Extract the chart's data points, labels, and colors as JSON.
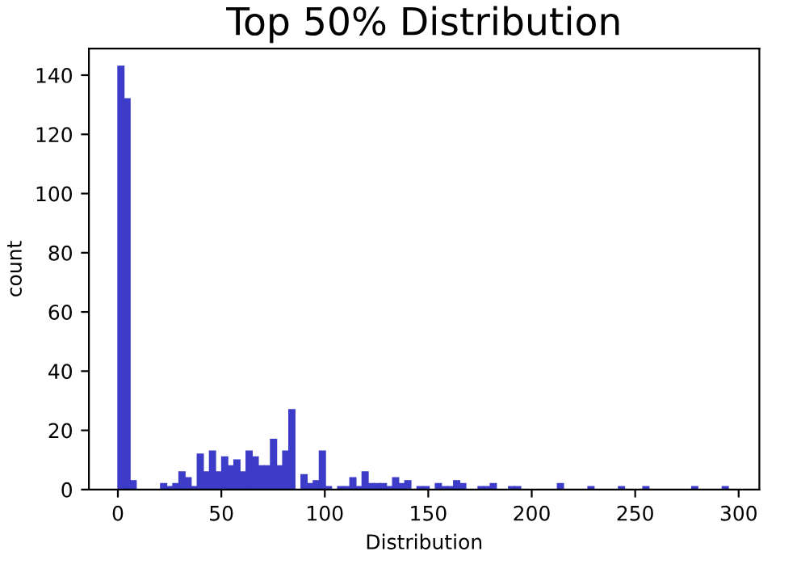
{
  "chart_data": {
    "type": "histogram",
    "title": "Top 50% Distribution",
    "xlabel": "Distribution",
    "ylabel": "count",
    "color": "#3c3cc8",
    "bins": [
      0,
      2.95,
      5.9,
      8.85,
      11.8,
      14.75,
      17.7,
      20.65,
      23.6,
      26.55,
      29.5,
      32.45,
      35.4,
      38.35,
      41.3,
      44.25,
      47.2,
      50.15,
      53.1,
      56.05,
      59,
      61.95,
      64.9,
      67.85,
      70.8,
      73.75,
      76.7,
      79.65,
      82.6,
      85.55,
      88.5,
      91.45,
      94.4,
      97.35,
      100.3,
      103.25,
      106.2,
      109.15,
      112.1,
      115.05,
      118,
      120.95,
      123.9,
      126.85,
      129.8,
      132.75,
      135.7,
      138.65,
      141.6,
      144.55,
      147.5,
      150.45,
      153.4,
      156.35,
      159.3,
      162.25,
      165.2,
      168.15,
      171.1,
      174.05,
      177,
      179.95,
      182.9,
      185.85,
      188.8,
      191.75,
      194.7,
      197.65,
      200.6,
      203.55,
      206.5,
      209.45,
      212.4,
      215.35,
      218.3,
      221.25,
      224.2,
      227.15,
      230.1,
      233.05,
      236,
      238.95,
      241.9,
      244.85,
      247.8,
      250.75,
      253.7,
      256.65,
      259.6,
      262.55,
      265.5,
      268.45,
      271.4,
      274.35,
      277.3,
      280.25,
      283.2,
      286.15,
      289.1,
      292.05,
      295
    ],
    "values": [
      143,
      132,
      3,
      0,
      0,
      0,
      0,
      2,
      1,
      2,
      6,
      4,
      1,
      12,
      6,
      13,
      6,
      11,
      8,
      10,
      6,
      13,
      11,
      8,
      8,
      17,
      8,
      13,
      27,
      0,
      5,
      2,
      3,
      13,
      1,
      0,
      1,
      1,
      4,
      1,
      6,
      2,
      2,
      2,
      1,
      4,
      2,
      3,
      0,
      1,
      1,
      0,
      2,
      1,
      1,
      3,
      2,
      0,
      0,
      1,
      1,
      2,
      0,
      0,
      1,
      1,
      0,
      0,
      0,
      0,
      0,
      0,
      2,
      0,
      0,
      0,
      0,
      1,
      0,
      0,
      0,
      0,
      1,
      0,
      0,
      0,
      1,
      0,
      0,
      0,
      0,
      0,
      0,
      0,
      1,
      0,
      0,
      0,
      0,
      1
    ],
    "xlim": [
      -14,
      310
    ],
    "ylim": [
      0,
      149
    ],
    "xticks": [
      0,
      50,
      100,
      150,
      200,
      250,
      300
    ],
    "yticks": [
      0,
      20,
      40,
      60,
      80,
      100,
      120,
      140
    ],
    "grid": false,
    "legend": false
  }
}
